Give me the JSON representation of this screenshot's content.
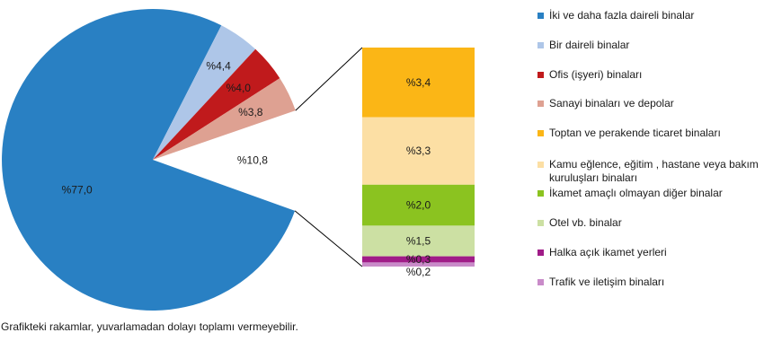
{
  "chart_data": {
    "type": "pie",
    "subtype": "pie-of-pie",
    "title": "",
    "footnote": "Grafikteki rakamlar, yuvarlamadan dolayı toplamı vermeyebilir.",
    "label_color": "#1a1a1a",
    "connector_color": "#000000",
    "pie": {
      "slices": [
        {
          "label": "İki ve daha fazla daireli binalar",
          "value": 77.0,
          "display": "%77,0",
          "color": "#2980C3"
        },
        {
          "label": "Bir daireli binalar",
          "value": 4.4,
          "display": "%4,4",
          "color": "#AEC6E8"
        },
        {
          "label": "Ofis (işyeri) binaları",
          "value": 4.0,
          "display": "%4,0",
          "color": "#C01A1C"
        },
        {
          "label": "Sanayi binaları ve depolar",
          "value": 3.8,
          "display": "%3,8",
          "color": "#DEA192"
        },
        {
          "value": 10.8,
          "display": "%10,8",
          "hidden": true
        }
      ]
    },
    "bar": {
      "segments": [
        {
          "label": "Toptan ve perakende ticaret binaları",
          "value": 3.4,
          "display": "%3,4",
          "color": "#FBB616"
        },
        {
          "label": "Kamu eğlence, eğitim , hastane veya bakım kuruluşları binaları",
          "value": 3.3,
          "display": "%3,3",
          "color": "#FCDFA4"
        },
        {
          "label": "İkamet amaçlı olmayan diğer binalar",
          "value": 2.0,
          "display": "%2,0",
          "color": "#8BC320"
        },
        {
          "label": "Otel vb. binalar",
          "value": 1.5,
          "display": "%1,5",
          "color": "#CCE0A3"
        },
        {
          "label": "Halka açık ikamet yerleri",
          "value": 0.3,
          "display": "%0,3",
          "color": "#A01C88"
        },
        {
          "label": "Trafik ve iletişim binaları",
          "value": 0.2,
          "display": "%0,2",
          "color": "#C98BC9"
        }
      ]
    },
    "legend": [
      {
        "label": "İki ve daha fazla daireli binalar",
        "color": "#2980C3"
      },
      {
        "label": "Bir daireli binalar",
        "color": "#AEC6E8"
      },
      {
        "label": "Ofis (işyeri) binaları",
        "color": "#C01A1C"
      },
      {
        "label": "Sanayi binaları ve depolar",
        "color": "#DEA192"
      },
      {
        "label": "Toptan ve perakende ticaret binaları",
        "color": "#FBB616"
      },
      {
        "label": "Kamu eğlence, eğitim , hastane veya bakım kuruluşları binaları",
        "color": "#FCDFA4"
      },
      {
        "label": "İkamet amaçlı olmayan diğer binalar",
        "color": "#8BC320"
      },
      {
        "label": "Otel vb. binalar",
        "color": "#CCE0A3"
      },
      {
        "label": "Halka açık ikamet yerleri",
        "color": "#A01C88"
      },
      {
        "label": "Trafik ve iletişim binaları",
        "color": "#C98BC9"
      }
    ]
  }
}
